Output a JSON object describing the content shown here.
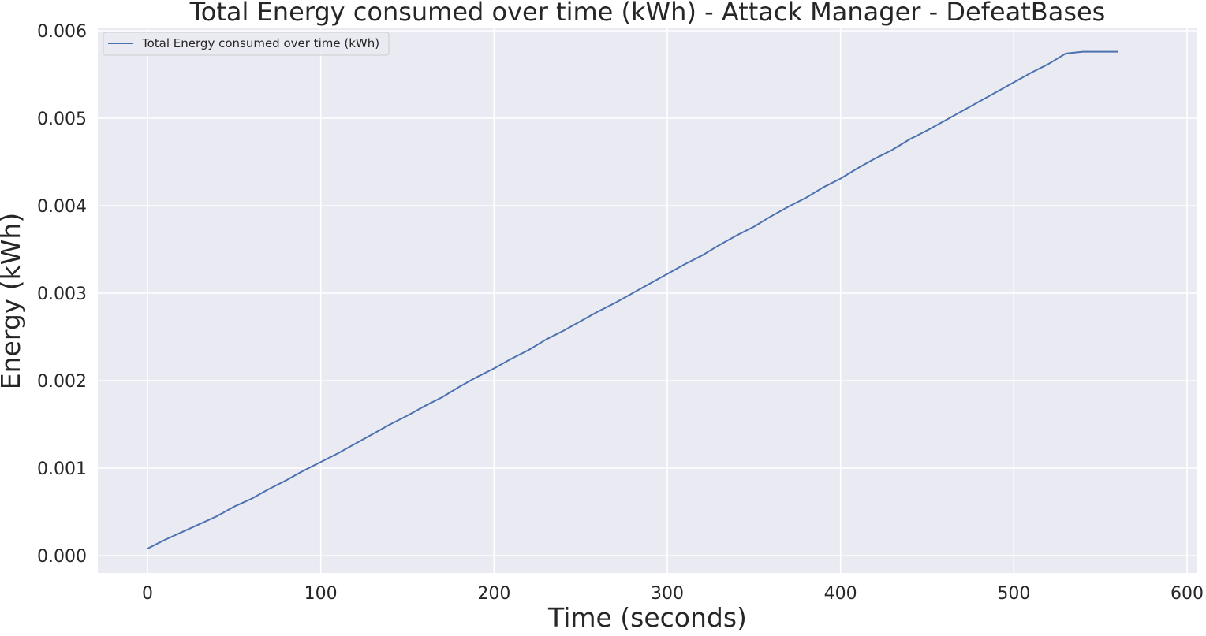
{
  "chart_data": {
    "type": "line",
    "title": "Total Energy consumed over time (kWh) - Attack Manager - DefeatBases",
    "xlabel": "Time (seconds)",
    "ylabel": "Energy (kWh)",
    "xlim": [
      -28,
      600
    ],
    "ylim": [
      -0.0002,
      0.006
    ],
    "xticks": [
      0,
      100,
      200,
      300,
      400,
      500,
      600
    ],
    "xtick_labels": [
      "0",
      "100",
      "200",
      "300",
      "400",
      "500",
      "600"
    ],
    "yticks": [
      0.0,
      0.001,
      0.002,
      0.003,
      0.004,
      0.005,
      0.006
    ],
    "ytick_labels": [
      "0.000",
      "0.001",
      "0.002",
      "0.003",
      "0.004",
      "0.005",
      "0.006"
    ],
    "grid": true,
    "legend_position": "top-left",
    "series": [
      {
        "name": "Total Energy consumed over time (kWh)",
        "color": "#4c72b0",
        "x": [
          0,
          5,
          10,
          20,
          30,
          40,
          50,
          60,
          70,
          80,
          90,
          100,
          110,
          120,
          130,
          140,
          150,
          160,
          170,
          180,
          190,
          200,
          210,
          220,
          230,
          240,
          250,
          260,
          270,
          280,
          290,
          300,
          310,
          320,
          330,
          340,
          350,
          360,
          370,
          380,
          390,
          400,
          410,
          420,
          430,
          440,
          450,
          460,
          470,
          480,
          490,
          500,
          510,
          520,
          530,
          540,
          550,
          560,
          570,
          577
        ],
        "y": [
          8e-05,
          0.00013,
          0.00018,
          0.00027,
          0.00036,
          0.00045,
          0.00056,
          0.00065,
          0.00076,
          0.00086,
          0.00097,
          0.00107,
          0.00117,
          0.00128,
          0.00139,
          0.0015,
          0.0016,
          0.00171,
          0.00181,
          0.00193,
          0.00204,
          0.00214,
          0.00225,
          0.00235,
          0.00247,
          0.00257,
          0.00268,
          0.00279,
          0.00289,
          0.003,
          0.00311,
          0.00322,
          0.00333,
          0.00343,
          0.00355,
          0.00366,
          0.00376,
          0.00388,
          0.00399,
          0.00409,
          0.00421,
          0.00431,
          0.00443,
          0.00454,
          0.00464,
          0.00476,
          0.00486,
          0.00497,
          0.00508,
          0.00519,
          0.0053,
          0.00541,
          0.00552,
          0.00562,
          0.00574,
          0.00576,
          0.00576,
          0.00576,
          0.00576,
          0.00576
        ]
      }
    ]
  },
  "style": {
    "plot_background": "#eaeaf2",
    "grid_color": "#ffffff",
    "text_color": "#262626"
  }
}
